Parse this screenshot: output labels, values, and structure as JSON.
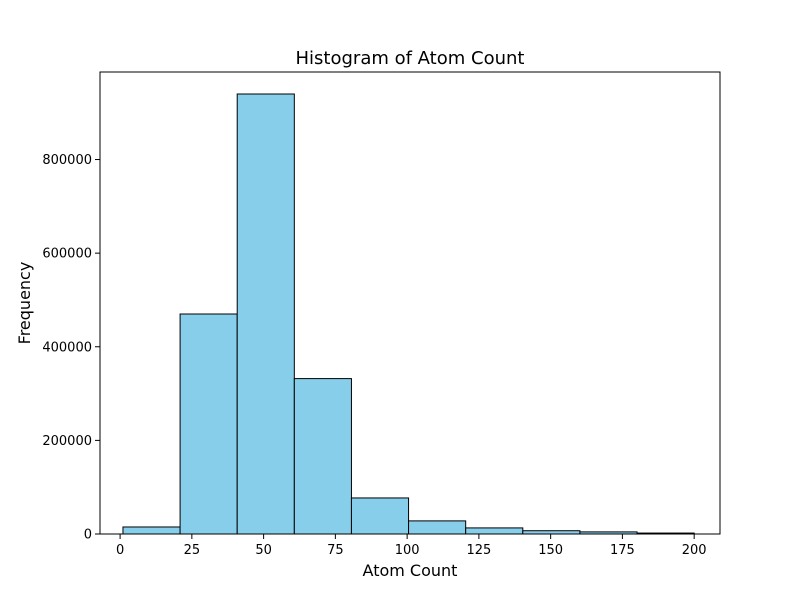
{
  "chart_data": {
    "type": "bar",
    "title": "Histogram of Atom Count",
    "xlabel": "Atom Count",
    "ylabel": "Frequency",
    "bin_edges": [
      1,
      20.9,
      40.8,
      60.7,
      80.6,
      100.5,
      120.4,
      140.3,
      160.2,
      180.1,
      200
    ],
    "values": [
      15000,
      470000,
      940000,
      332000,
      77000,
      28000,
      13000,
      7000,
      4500,
      2000
    ],
    "xlim": [
      -7,
      209
    ],
    "ylim": [
      0,
      987000
    ],
    "xticks": [
      0,
      25,
      50,
      75,
      100,
      125,
      150,
      175,
      200
    ],
    "xtick_labels": [
      "0",
      "25",
      "50",
      "75",
      "100",
      "125",
      "150",
      "175",
      "200"
    ],
    "yticks": [
      0,
      200000,
      400000,
      600000,
      800000
    ],
    "ytick_labels": [
      "0",
      "200000",
      "400000",
      "600000",
      "800000"
    ],
    "bar_color": "#87ceeb",
    "edge_color": "#000000",
    "grid": false,
    "legend": "none"
  }
}
